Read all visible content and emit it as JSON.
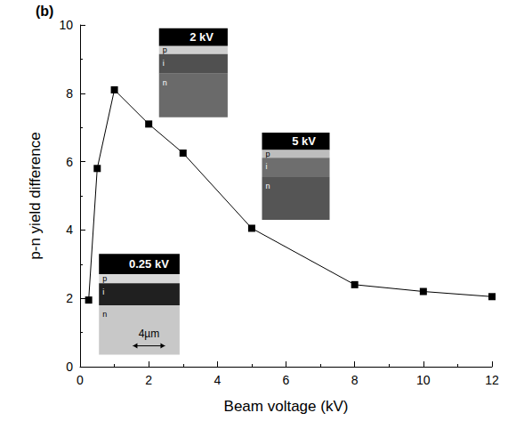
{
  "chart_data": {
    "type": "line",
    "panel_label": "(b)",
    "x_label": "Beam voltage (kV)",
    "y_label": "p-n yield difference",
    "x": [
      0.25,
      0.5,
      1,
      2,
      3,
      5,
      8,
      10,
      12
    ],
    "values": [
      1.95,
      5.8,
      8.1,
      7.1,
      6.25,
      4.05,
      2.4,
      2.2,
      2.05
    ],
    "color": "#000000",
    "marker": "square",
    "xlim": [
      0,
      12
    ],
    "xticks": [
      0,
      2,
      4,
      6,
      8,
      10,
      12
    ],
    "ylim": [
      0,
      10
    ],
    "yticks": [
      0,
      2,
      4,
      6,
      8,
      10
    ],
    "grid": false,
    "annotations": [
      {
        "text": "0.25 kV",
        "layers": [
          "p",
          "i",
          "n"
        ],
        "scale_bar": "4µm"
      },
      {
        "text": "2 kV",
        "layers": [
          "p",
          "i",
          "n"
        ]
      },
      {
        "text": "5 kV",
        "layers": [
          "p",
          "i",
          "n"
        ]
      }
    ]
  }
}
